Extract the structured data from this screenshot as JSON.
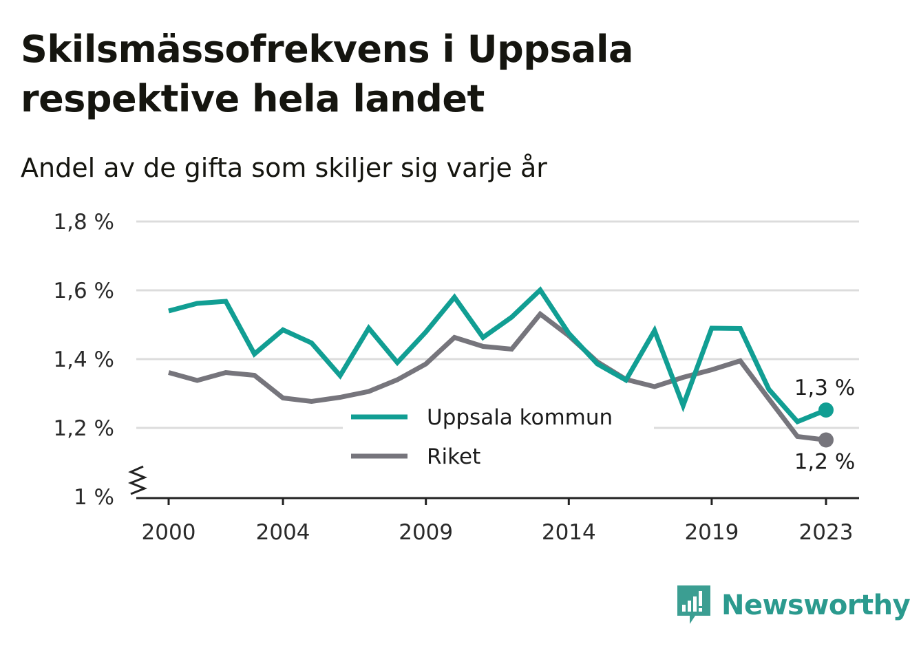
{
  "title": "Skilsmässofrekvens i Uppsala respektive hela landet",
  "subtitle": "Andel av de gifta som skiljer sig varje år",
  "logo": {
    "name": "Newsworthy",
    "icon": "newsworthy-logo-icon",
    "color": "#3b9e92"
  },
  "colors": {
    "uppsala": "#119e93",
    "riket": "#76757c",
    "grid": "#dcdcdc",
    "axis": "#222222"
  },
  "chart_data": {
    "type": "line",
    "x": [
      2000,
      2001,
      2002,
      2003,
      2004,
      2005,
      2006,
      2007,
      2008,
      2009,
      2010,
      2011,
      2012,
      2013,
      2014,
      2015,
      2016,
      2017,
      2018,
      2019,
      2020,
      2021,
      2022,
      2023
    ],
    "xticks": [
      2000,
      2004,
      2009,
      2014,
      2019,
      2023
    ],
    "ylim": [
      1.0,
      1.8
    ],
    "yticks": [
      1.0,
      1.2,
      1.4,
      1.6,
      1.8
    ],
    "ytick_labels": [
      "1 %",
      "1,2 %",
      "1,4 %",
      "1,6 %",
      "1,8 %"
    ],
    "y_axis_break": true,
    "grid": true,
    "legend_position": "center",
    "series": [
      {
        "name": "Uppsala kommun",
        "color": "#119e93",
        "values": [
          1.54,
          1.562,
          1.568,
          1.415,
          1.485,
          1.447,
          1.352,
          1.49,
          1.39,
          1.479,
          1.58,
          1.463,
          1.522,
          1.601,
          1.475,
          1.386,
          1.339,
          1.483,
          1.265,
          1.49,
          1.489,
          1.312,
          1.218,
          1.252
        ],
        "end_label": "1,3 %"
      },
      {
        "name": "Riket",
        "color": "#76757c",
        "values": [
          1.361,
          1.338,
          1.361,
          1.353,
          1.287,
          1.277,
          1.289,
          1.306,
          1.34,
          1.386,
          1.463,
          1.437,
          1.429,
          1.531,
          1.468,
          1.392,
          1.341,
          1.32,
          1.347,
          1.369,
          1.395,
          1.284,
          1.175,
          1.165
        ],
        "end_label": "1,2 %"
      }
    ]
  }
}
